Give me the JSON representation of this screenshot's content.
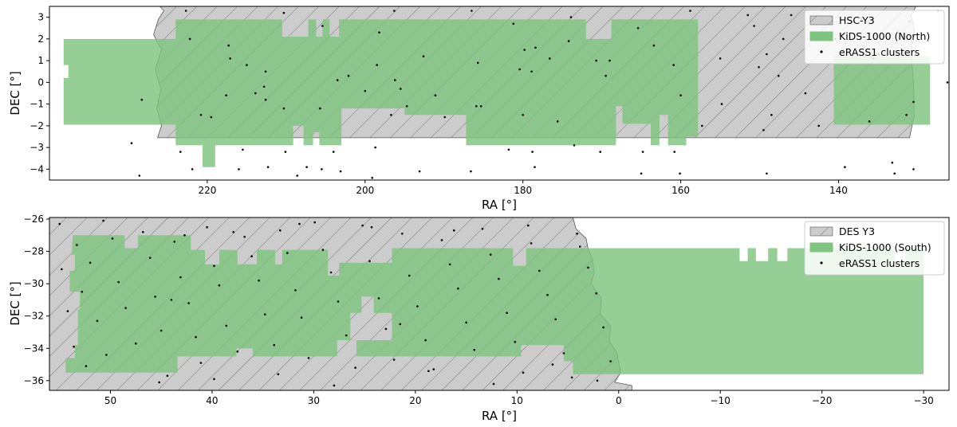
{
  "colors": {
    "survey_fill": "#cccccc",
    "survey_edge": "#555555",
    "kids_fill": "#7fc47f",
    "cluster_dot": "#000000",
    "legend_border": "#cccccc"
  },
  "chart_data": [
    {
      "type": "scatter",
      "xlabel": "RA [°]",
      "ylabel": "DEC [°]",
      "xlim": [
        240,
        126
      ],
      "ylim": [
        -4.5,
        3.5
      ],
      "xticks": [
        "220",
        "200",
        "180",
        "160",
        "140"
      ],
      "xtick_values": [
        220,
        200,
        180,
        160,
        140
      ],
      "yticks": [
        "−4",
        "−3",
        "−2",
        "−1",
        "0",
        "1",
        "2",
        "3"
      ],
      "ytick_values": [
        -4,
        -3,
        -2,
        -1,
        0,
        1,
        2,
        3
      ],
      "grid": false,
      "legend_position": "top-right",
      "legend": [
        "HSC-Y3",
        "KiDS-1000 (North)",
        "eRASS1 clusters"
      ],
      "survey_region": [
        [
          226.0,
          3.5
        ],
        [
          225.5,
          3.3
        ],
        [
          226.2,
          2.9
        ],
        [
          226.8,
          2.2
        ],
        [
          225.8,
          1.5
        ],
        [
          226.6,
          0.6
        ],
        [
          225.9,
          -0.3
        ],
        [
          226.4,
          -1.2
        ],
        [
          225.8,
          -2.0
        ],
        [
          226.3,
          -2.55
        ],
        [
          131,
          -2.55
        ],
        [
          130.4,
          -1.5
        ],
        [
          130.5,
          0.0
        ],
        [
          130.8,
          1.3
        ],
        [
          130.4,
          2.4
        ],
        [
          130.8,
          3.1
        ],
        [
          130.2,
          3.5
        ]
      ],
      "kids_region": [
        [
          238.2,
          2.0
        ],
        [
          224.0,
          2.0
        ],
        [
          224.0,
          2.9
        ],
        [
          210.5,
          2.9
        ],
        [
          210.5,
          2.1
        ],
        [
          207.2,
          2.1
        ],
        [
          207.2,
          2.9
        ],
        [
          206.2,
          2.9
        ],
        [
          206.2,
          2.1
        ],
        [
          205.4,
          2.1
        ],
        [
          205.4,
          2.9
        ],
        [
          204.5,
          2.9
        ],
        [
          204.5,
          2.1
        ],
        [
          203.3,
          2.1
        ],
        [
          203.3,
          2.9
        ],
        [
          172.0,
          2.9
        ],
        [
          172.0,
          2.0
        ],
        [
          168.8,
          2.0
        ],
        [
          168.8,
          2.9
        ],
        [
          157.8,
          2.9
        ],
        [
          157.8,
          -2.5
        ],
        [
          159.3,
          -2.5
        ],
        [
          159.3,
          -2.9
        ],
        [
          161.6,
          -2.9
        ],
        [
          161.6,
          -1.5
        ],
        [
          162.7,
          -1.5
        ],
        [
          162.7,
          -2.9
        ],
        [
          163.8,
          -2.9
        ],
        [
          163.8,
          -1.9
        ],
        [
          167.4,
          -1.9
        ],
        [
          167.4,
          -1.1
        ],
        [
          168.2,
          -1.1
        ],
        [
          168.2,
          -2.9
        ],
        [
          187.2,
          -2.9
        ],
        [
          187.2,
          -1.5
        ],
        [
          195.0,
          -1.5
        ],
        [
          195.0,
          -1.2
        ],
        [
          203.0,
          -1.2
        ],
        [
          203.0,
          -2.9
        ],
        [
          205.8,
          -2.9
        ],
        [
          205.8,
          -2.3
        ],
        [
          206.6,
          -2.3
        ],
        [
          206.6,
          -2.9
        ],
        [
          207.8,
          -2.9
        ],
        [
          207.8,
          -2.0
        ],
        [
          209.1,
          -2.0
        ],
        [
          209.1,
          -2.9
        ],
        [
          219.0,
          -2.9
        ],
        [
          219.0,
          -3.9
        ],
        [
          220.6,
          -3.9
        ],
        [
          220.6,
          -2.9
        ],
        [
          224.0,
          -2.9
        ],
        [
          224.0,
          -1.95
        ],
        [
          238.2,
          -1.95
        ],
        [
          238.2,
          0.2
        ],
        [
          237.6,
          0.2
        ],
        [
          237.6,
          0.8
        ],
        [
          238.2,
          0.8
        ]
      ],
      "kids_region_east": [
        [
          140.6,
          1.2
        ],
        [
          128.4,
          1.2
        ],
        [
          128.4,
          -1.95
        ],
        [
          140.6,
          -1.95
        ]
      ],
      "clusters": {
        "x": [
          222.7,
          222.2,
          217.3,
          217.1,
          212.6,
          210.3,
          205.4,
          198.2,
          196.3,
          192.6,
          186.5,
          185.7,
          181.2,
          179.8,
          178.9,
          178.4,
          176.6,
          174.2,
          173.9,
          170.7,
          169.5,
          165.4,
          163.4,
          160.9,
          158.8,
          151.5,
          150.7,
          149.1,
          147.0,
          146.0,
          143.0,
          140.4,
          137.1,
          135.6,
          134.9,
          132.5,
          131.0,
          127.4,
          150.1,
          155.0,
          205.7,
          196.7,
          189.9,
          228.3,
          217.6,
          212.6,
          200.0,
          196.2,
          160.0,
          154.8,
          131.4,
          130.5,
          148.5,
          215.0,
          180.4,
          147.6,
          169.0,
          198.5,
          212.8,
          203.5,
          185.9,
          175.6,
          194.7,
          219.5,
          210.3,
          144.2,
          136.1,
          220.8,
          213.9,
          202.1,
          195.5,
          191.1,
          185.3,
          180.0,
          157.3,
          149.5,
          142.5,
          229.6,
          223.4,
          215.5,
          210.1,
          204.0,
          198.7,
          181.8,
          178.8,
          173.5,
          170.2,
          164.8,
          160.8,
          133.2,
          139.2,
          228.6,
          221.9,
          216.0,
          212.3,
          208.6,
          207.4,
          205.5,
          203.1,
          199.1,
          193.1,
          186.6,
          178.5,
          165.0,
          160.1,
          149.1,
          132.9,
          130.5,
          126.2
        ],
        "y": [
          3.3,
          2.0,
          1.7,
          1.1,
          0.5,
          3.2,
          2.6,
          2.3,
          3.3,
          1.2,
          3.3,
          0.9,
          2.7,
          1.5,
          0.5,
          1.6,
          1.1,
          1.9,
          3.0,
          1.0,
          0.3,
          2.5,
          1.7,
          0.8,
          3.3,
          3.1,
          2.6,
          1.3,
          2.0,
          3.1,
          3.0,
          2.0,
          2.9,
          1.1,
          1.3,
          2.3,
          2.8,
          3.3,
          0.7,
          1.1,
          -1.2,
          -1.5,
          -1.6,
          -0.8,
          -0.6,
          -0.8,
          -0.4,
          0.1,
          -0.6,
          -1.0,
          -1.5,
          -0.9,
          -1.5,
          0.8,
          0.6,
          0.3,
          1.0,
          0.8,
          -0.2,
          0.1,
          -1.1,
          -1.8,
          -1.1,
          -1.6,
          -1.2,
          -0.5,
          -1.8,
          -1.5,
          -0.5,
          0.3,
          -0.3,
          -0.6,
          -1.1,
          -1.5,
          -2.0,
          -2.2,
          -2.0,
          -2.8,
          -3.2,
          -3.1,
          -3.2,
          -3.2,
          -3.0,
          -3.1,
          -3.2,
          -2.9,
          -3.2,
          -3.2,
          -3.2,
          -3.7,
          -3.9,
          -4.3,
          -4.0,
          -4.0,
          -3.9,
          -4.3,
          -3.9,
          -4.0,
          -4.1,
          -4.4,
          -4.1,
          -4.1,
          -3.9,
          -4.2,
          -4.2,
          -4.2,
          -4.2,
          -4.0,
          0.0
        ]
      }
    },
    {
      "type": "scatter",
      "xlabel": "RA [°]",
      "ylabel": "DEC [°]",
      "xlim": [
        56,
        -32.5
      ],
      "ylim": [
        -36.6,
        -25.9
      ],
      "xticks": [
        "50",
        "40",
        "30",
        "20",
        "10",
        "0",
        "−10",
        "−20",
        "−30"
      ],
      "xtick_values": [
        50,
        40,
        30,
        20,
        10,
        0,
        -10,
        -20,
        -30
      ],
      "yticks": [
        "−36",
        "−34",
        "−32",
        "−30",
        "−28",
        "−26"
      ],
      "ytick_values": [
        -36,
        -34,
        -32,
        -30,
        -28,
        -26
      ],
      "grid": false,
      "legend_position": "top-right",
      "legend": [
        "DES Y3",
        "KiDS-1000 (South)",
        "eRASS1 clusters"
      ],
      "survey_region": [
        [
          56,
          -25.9
        ],
        [
          4.5,
          -25.9
        ],
        [
          4.2,
          -26.6
        ],
        [
          3.2,
          -27.2
        ],
        [
          3.0,
          -27.9
        ],
        [
          2.6,
          -28.4
        ],
        [
          2.4,
          -29.3
        ],
        [
          2.7,
          -30.0
        ],
        [
          1.7,
          -30.9
        ],
        [
          1.8,
          -31.9
        ],
        [
          0.8,
          -32.6
        ],
        [
          0.9,
          -33.6
        ],
        [
          0.2,
          -34.2
        ],
        [
          -0.2,
          -35.5
        ],
        [
          0.4,
          -36.1
        ],
        [
          -1.3,
          -36.3
        ],
        [
          -1.3,
          -36.6
        ],
        [
          56,
          -36.6
        ]
      ],
      "kids_region": [
        [
          53.7,
          -27.0
        ],
        [
          48.6,
          -27.0
        ],
        [
          48.6,
          -27.8
        ],
        [
          47.3,
          -27.8
        ],
        [
          47.3,
          -27.0
        ],
        [
          42.1,
          -27.0
        ],
        [
          42.1,
          -27.9
        ],
        [
          40.7,
          -27.9
        ],
        [
          40.7,
          -28.8
        ],
        [
          39.3,
          -28.8
        ],
        [
          39.3,
          -27.9
        ],
        [
          37.5,
          -27.9
        ],
        [
          37.5,
          -28.8
        ],
        [
          35.6,
          -28.8
        ],
        [
          35.6,
          -27.9
        ],
        [
          33.8,
          -27.9
        ],
        [
          33.8,
          -28.8
        ],
        [
          33.1,
          -28.8
        ],
        [
          33.1,
          -27.9
        ],
        [
          28.6,
          -27.9
        ],
        [
          28.6,
          -29.5
        ],
        [
          27.5,
          -29.5
        ],
        [
          27.5,
          -28.7
        ],
        [
          22.3,
          -28.7
        ],
        [
          22.3,
          -27.8
        ],
        [
          10.4,
          -27.8
        ],
        [
          10.4,
          -28.9
        ],
        [
          9.1,
          -28.9
        ],
        [
          9.1,
          -27.8
        ],
        [
          2.2,
          -27.8
        ],
        [
          2.2,
          -28.5
        ],
        [
          2.4,
          -29.5
        ],
        [
          1.8,
          -30.6
        ],
        [
          1.9,
          -31.8
        ],
        [
          1.0,
          -32.7
        ],
        [
          1.0,
          -33.6
        ],
        [
          0.4,
          -34.3
        ],
        [
          0.1,
          -35.1
        ],
        [
          0.3,
          -35.6
        ],
        [
          -30.0,
          -35.6
        ],
        [
          -30.0,
          -27.8
        ],
        [
          -28.2,
          -27.8
        ],
        [
          -28.2,
          -28.7
        ],
        [
          -27.2,
          -28.7
        ],
        [
          -27.2,
          -27.8
        ],
        [
          -16.6,
          -27.8
        ],
        [
          -16.6,
          -28.6
        ],
        [
          -15.6,
          -28.6
        ],
        [
          -15.6,
          -27.8
        ],
        [
          -14.7,
          -27.8
        ],
        [
          -14.7,
          -28.6
        ],
        [
          -13.5,
          -28.6
        ],
        [
          -13.5,
          -27.8
        ],
        [
          -12.7,
          -27.8
        ],
        [
          -12.7,
          -28.6
        ],
        [
          -11.9,
          -28.6
        ],
        [
          -11.9,
          -27.8
        ],
        [
          2.2,
          -27.8
        ],
        [
          2.2,
          -28.5
        ],
        [
          2.4,
          -29.5
        ],
        [
          1.8,
          -30.6
        ],
        [
          1.9,
          -31.8
        ],
        [
          1.0,
          -32.7
        ],
        [
          1.0,
          -33.6
        ],
        [
          0.4,
          -34.3
        ],
        [
          0.1,
          -35.1
        ],
        [
          0.3,
          -35.6
        ],
        [
          4.5,
          -35.6
        ],
        [
          4.5,
          -34.8
        ],
        [
          5.4,
          -34.8
        ],
        [
          5.4,
          -33.8
        ],
        [
          9.6,
          -33.8
        ],
        [
          9.6,
          -34.5
        ],
        [
          25.8,
          -34.5
        ],
        [
          25.8,
          -33.5
        ],
        [
          22.3,
          -33.5
        ],
        [
          22.3,
          -31.8
        ],
        [
          24.1,
          -31.8
        ],
        [
          24.1,
          -30.8
        ],
        [
          25.3,
          -30.8
        ],
        [
          25.3,
          -31.8
        ],
        [
          26.4,
          -31.8
        ],
        [
          26.4,
          -33.5
        ],
        [
          29.6,
          -33.5
        ],
        [
          29.6,
          -30.9
        ],
        [
          27.7,
          -30.9
        ],
        [
          27.7,
          -34.5
        ],
        [
          36.0,
          -34.5
        ],
        [
          36.0,
          -34.0
        ],
        [
          37.6,
          -34.0
        ],
        [
          37.6,
          -34.5
        ],
        [
          43.4,
          -34.5
        ],
        [
          43.4,
          -35.5
        ],
        [
          54.4,
          -35.5
        ],
        [
          54.4,
          -34.6
        ],
        [
          53.5,
          -34.6
        ],
        [
          53.5,
          -33.8
        ],
        [
          53.2,
          -33.8
        ],
        [
          53.2,
          -31.6
        ],
        [
          53.0,
          -31.6
        ],
        [
          53.0,
          -30.5
        ],
        [
          54.0,
          -30.5
        ],
        [
          54.0,
          -29.2
        ],
        [
          53.5,
          -29.2
        ],
        [
          53.5,
          -28.2
        ],
        [
          53.8,
          -28.2
        ]
      ],
      "clusters": {
        "x": [
          55.0,
          54.8,
          54.2,
          53.6,
          53.3,
          52.8,
          52.4,
          52.0,
          51.3,
          50.4,
          49.8,
          49.2,
          48.5,
          47.5,
          46.8,
          46.1,
          45.6,
          45.0,
          44.4,
          43.7,
          43.1,
          42.3,
          41.6,
          41.1,
          40.5,
          39.8,
          39.3,
          38.6,
          37.5,
          36.8,
          36.1,
          35.4,
          34.8,
          33.9,
          33.3,
          32.6,
          31.8,
          31.2,
          30.5,
          29.9,
          29.1,
          28.3,
          27.6,
          26.8,
          25.9,
          25.2,
          24.5,
          23.6,
          22.9,
          22.1,
          21.3,
          20.6,
          19.8,
          19.0,
          18.2,
          17.4,
          16.6,
          15.8,
          15.0,
          14.2,
          13.4,
          12.6,
          11.8,
          11.0,
          10.2,
          9.4,
          8.6,
          7.8,
          7.0,
          6.2,
          5.4,
          4.6,
          3.8,
          3.0,
          2.2,
          1.5,
          0.8,
          45.2,
          39.8,
          33.5,
          28.0,
          18.7,
          12.3,
          6.5,
          2.1,
          50.7,
          42.7,
          37.9,
          31.4,
          24.3,
          16.2,
          8.9,
          4.1,
          44.0,
          21.5
        ],
        "y": [
          -26.3,
          -29.1,
          -31.7,
          -33.9,
          -27.6,
          -30.5,
          -35.1,
          -28.7,
          -32.3,
          -34.4,
          -27.2,
          -29.9,
          -31.5,
          -33.7,
          -26.8,
          -28.4,
          -30.8,
          -32.9,
          -35.7,
          -27.4,
          -29.6,
          -31.2,
          -33.3,
          -34.9,
          -26.5,
          -28.9,
          -30.1,
          -32.6,
          -34.2,
          -27.1,
          -28.3,
          -29.8,
          -31.9,
          -33.8,
          -26.7,
          -28.1,
          -30.4,
          -32.1,
          -34.6,
          -26.2,
          -27.9,
          -29.3,
          -31.1,
          -33.2,
          -35.2,
          -26.4,
          -28.6,
          -30.9,
          -32.8,
          -34.7,
          -26.9,
          -29.5,
          -31.4,
          -33.5,
          -35.3,
          -27.3,
          -28.8,
          -30.3,
          -32.4,
          -34.1,
          -26.6,
          -28.2,
          -29.7,
          -31.8,
          -33.6,
          -35.5,
          -27.5,
          -29.2,
          -30.7,
          -32.2,
          -34.3,
          -35.8,
          -27.7,
          -29.0,
          -30.6,
          -32.7,
          -34.8,
          -36.1,
          -35.9,
          -35.6,
          -36.3,
          -35.4,
          -36.2,
          -35.0,
          -36.0,
          -26.1,
          -27.0,
          -26.8,
          -26.3,
          -26.5,
          -26.7,
          -26.4,
          -26.9,
          -31.0,
          -32.5
        ]
      }
    }
  ]
}
